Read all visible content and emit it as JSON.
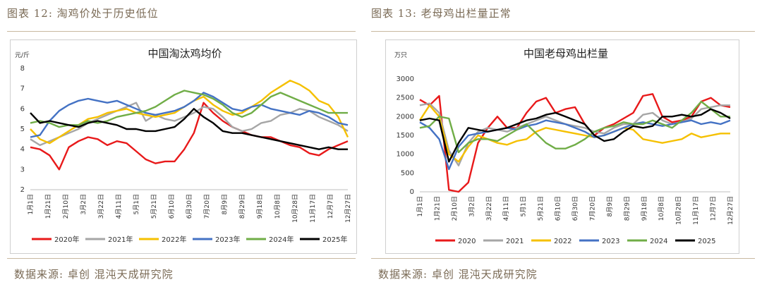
{
  "left_header": "图表 12:  淘鸡价处于历史低位",
  "right_header": "图表 13:  老母鸡出栏量正常",
  "left_source": "数据来源:  卓创  混沌天成研究院",
  "right_source": "数据来源:  卓创  混沌天成研究院",
  "chart_data": [
    {
      "type": "line",
      "title": "中国淘汰鸡均价",
      "ylabel": "元/斤",
      "ylim": [
        2,
        8
      ],
      "yticks": [
        2,
        3,
        4,
        5,
        6,
        7,
        8
      ],
      "xticks": [
        "1月1日",
        "1月21日",
        "2月10日",
        "3月2日",
        "3月22日",
        "4月11日",
        "5月1日",
        "5月21日",
        "6月10日",
        "6月30日",
        "7月20日",
        "8月9日",
        "8月29日",
        "9月18日",
        "10月8日",
        "10月28日",
        "11月17日",
        "12月7日",
        "12月27日"
      ],
      "legend": "bottom",
      "series": [
        {
          "name": "2020年",
          "color": "#e8191a",
          "values": [
            4.1,
            4.0,
            3.7,
            3.0,
            4.1,
            4.4,
            4.6,
            4.5,
            4.2,
            4.4,
            4.3,
            3.9,
            3.5,
            3.3,
            3.4,
            3.4,
            4.0,
            4.8,
            6.3,
            5.8,
            5.4,
            5.1,
            4.9,
            4.7,
            4.6,
            4.6,
            4.4,
            4.2,
            4.1,
            3.8,
            3.7,
            4.0,
            4.2,
            4.4
          ]
        },
        {
          "name": "2021年",
          "color": "#a6a6a6",
          "values": [
            4.5,
            4.2,
            4.4,
            4.6,
            4.8,
            5.0,
            5.3,
            5.5,
            5.7,
            5.9,
            6.1,
            6.3,
            5.4,
            5.7,
            5.5,
            5.4,
            5.6,
            5.8,
            6.1,
            6.0,
            5.6,
            5.1,
            4.9,
            5.0,
            5.3,
            5.4,
            5.7,
            5.8,
            6.0,
            5.9,
            5.6,
            5.4,
            5.2,
            4.9
          ]
        },
        {
          "name": "2022年",
          "color": "#f5c000",
          "values": [
            5.0,
            4.5,
            4.3,
            4.6,
            4.9,
            5.2,
            5.5,
            5.6,
            5.8,
            5.9,
            6.0,
            5.8,
            5.7,
            5.6,
            5.7,
            5.8,
            6.1,
            6.4,
            6.6,
            6.2,
            5.9,
            5.7,
            5.8,
            6.1,
            6.4,
            6.8,
            7.1,
            7.4,
            7.2,
            6.9,
            6.4,
            6.2,
            5.6,
            4.6
          ]
        },
        {
          "name": "2023年",
          "color": "#4472c4",
          "values": [
            4.6,
            4.7,
            5.4,
            5.9,
            6.2,
            6.4,
            6.5,
            6.4,
            6.3,
            6.4,
            6.2,
            6.0,
            5.8,
            5.7,
            5.8,
            5.9,
            6.1,
            6.4,
            6.8,
            6.6,
            6.3,
            6.0,
            5.9,
            6.1,
            6.2,
            6.0,
            5.9,
            5.8,
            5.7,
            5.9,
            5.8,
            5.6,
            5.3,
            5.2
          ]
        },
        {
          "name": "2024年",
          "color": "#70ad47",
          "values": [
            5.3,
            5.4,
            5.3,
            5.1,
            5.2,
            5.2,
            5.4,
            5.3,
            5.4,
            5.6,
            5.7,
            5.8,
            5.9,
            6.1,
            6.4,
            6.7,
            6.9,
            6.8,
            6.7,
            6.5,
            6.2,
            5.8,
            5.6,
            5.8,
            6.2,
            6.6,
            6.8,
            6.6,
            6.4,
            6.2,
            6.0,
            5.8,
            5.8,
            5.8
          ]
        },
        {
          "name": "2025年",
          "color": "#000000",
          "values": [
            5.8,
            5.3,
            5.4,
            5.3,
            5.2,
            5.1,
            5.3,
            5.4,
            5.3,
            5.2,
            5.0,
            5.0,
            4.9,
            4.9,
            5.0,
            5.1,
            5.5,
            6.0,
            5.6,
            5.3,
            4.9,
            4.8,
            4.8,
            4.7,
            4.6,
            4.5,
            4.4,
            4.3,
            4.2,
            4.1,
            4.0,
            4.1,
            4.0,
            4.0
          ]
        }
      ]
    },
    {
      "type": "line",
      "title": "中国老母鸡出栏量",
      "ylabel": "万只",
      "ylim": [
        0,
        3000
      ],
      "yticks": [
        0,
        500,
        1000,
        1500,
        2000,
        2500,
        3000
      ],
      "xticks": [
        "1月1日",
        "1月21日",
        "2月10日",
        "3月2日",
        "3月22日",
        "4月11日",
        "5月1日",
        "5月21日",
        "6月10日",
        "6月30日",
        "7月20日",
        "8月9日",
        "8月29日",
        "9月18日",
        "10月8日",
        "10月28日",
        "11月17日",
        "12月7日",
        "12月27日"
      ],
      "legend": "bottom",
      "series": [
        {
          "name": "2020",
          "color": "#e8191a",
          "values": [
            2450,
            2300,
            2550,
            50,
            0,
            250,
            1300,
            1700,
            2000,
            1700,
            1700,
            2100,
            2400,
            2500,
            2100,
            2200,
            2250,
            1800,
            1500,
            1700,
            1800,
            1950,
            2100,
            2550,
            2600,
            2000,
            1850,
            1900,
            2000,
            2400,
            2500,
            2300,
            2250
          ]
        },
        {
          "name": "2021",
          "color": "#a6a6a6",
          "values": [
            2300,
            2350,
            2100,
            1100,
            700,
            1300,
            1600,
            1700,
            1650,
            1600,
            1700,
            1800,
            1900,
            2000,
            1900,
            1800,
            1750,
            1700,
            1600,
            1550,
            1700,
            1800,
            1800,
            2050,
            2100,
            1900,
            1800,
            1850,
            1950,
            2200,
            2250,
            2300,
            2300
          ]
        },
        {
          "name": "2022",
          "color": "#f5c000",
          "values": [
            1900,
            2300,
            2000,
            1000,
            800,
            1200,
            1500,
            1400,
            1300,
            1250,
            1350,
            1400,
            1600,
            1700,
            1650,
            1600,
            1550,
            1500,
            1450,
            1500,
            1600,
            1700,
            1650,
            1400,
            1350,
            1300,
            1350,
            1400,
            1550,
            1450,
            1500,
            1550,
            1550
          ]
        },
        {
          "name": "2023",
          "color": "#4472c4",
          "values": [
            1850,
            1700,
            1400,
            600,
            1200,
            1500,
            1550,
            1600,
            1650,
            1700,
            1650,
            1750,
            1800,
            1900,
            1850,
            1800,
            1700,
            1600,
            1450,
            1500,
            1600,
            1700,
            1800,
            1850,
            1800,
            1750,
            1800,
            1850,
            1900,
            1800,
            1850,
            1800,
            1900
          ]
        },
        {
          "name": "2024",
          "color": "#70ad47",
          "values": [
            1700,
            1750,
            2000,
            1950,
            1050,
            1300,
            1400,
            1400,
            1350,
            1500,
            1650,
            1800,
            1550,
            1300,
            1150,
            1150,
            1250,
            1400,
            1600,
            1700,
            1750,
            1850,
            1800,
            1800,
            1900,
            1800,
            1700,
            1900,
            2100,
            2400,
            2200,
            2000,
            2000
          ]
        },
        {
          "name": "2025",
          "color": "#000000",
          "values": [
            1900,
            1950,
            1900,
            800,
            1300,
            1700,
            1650,
            1600,
            1650,
            1700,
            1800,
            1900,
            1950,
            2050,
            2100,
            2000,
            1900,
            1800,
            1500,
            1350,
            1400,
            1600,
            1750,
            1700,
            1750,
            2000,
            2000,
            2050,
            2000,
            2050,
            2200,
            2100,
            1950
          ]
        }
      ]
    }
  ]
}
